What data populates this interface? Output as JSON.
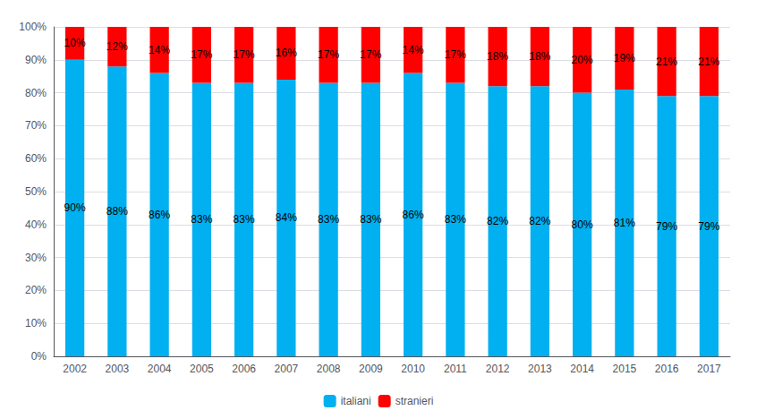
{
  "chart_data": {
    "type": "bar",
    "stacked": true,
    "categories": [
      "2002",
      "2003",
      "2004",
      "2005",
      "2006",
      "2007",
      "2008",
      "2009",
      "2010",
      "2011",
      "2012",
      "2013",
      "2014",
      "2015",
      "2016",
      "2017"
    ],
    "series": [
      {
        "name": "italiani",
        "color": "#00B0F0",
        "values": [
          90,
          88,
          86,
          83,
          83,
          84,
          83,
          83,
          86,
          83,
          82,
          82,
          80,
          81,
          79,
          79
        ],
        "value_labels": [
          "90%",
          "88%",
          "86%",
          "83%",
          "83%",
          "84%",
          "83%",
          "83%",
          "86%",
          "83%",
          "82%",
          "82%",
          "80%",
          "81%",
          "79%",
          "79%"
        ]
      },
      {
        "name": "stranieri",
        "color": "#FF0000",
        "values": [
          10,
          12,
          14,
          17,
          17,
          16,
          17,
          17,
          14,
          17,
          18,
          18,
          20,
          19,
          21,
          21
        ],
        "value_labels": [
          "10%",
          "12%",
          "14%",
          "17%",
          "17%",
          "16%",
          "17%",
          "17%",
          "14%",
          "17%",
          "18%",
          "18%",
          "20%",
          "19%",
          "21%",
          "21%"
        ]
      }
    ],
    "ylim": [
      0,
      100
    ],
    "yticks": [
      {
        "value": 0,
        "label": "0%"
      },
      {
        "value": 10,
        "label": "10%"
      },
      {
        "value": 20,
        "label": "20%"
      },
      {
        "value": 30,
        "label": "30%"
      },
      {
        "value": 40,
        "label": "40%"
      },
      {
        "value": 50,
        "label": "50%"
      },
      {
        "value": 60,
        "label": "60%"
      },
      {
        "value": 70,
        "label": "70%"
      },
      {
        "value": 80,
        "label": "80%"
      },
      {
        "value": 90,
        "label": "90%"
      },
      {
        "value": 100,
        "label": "100%"
      }
    ],
    "grid": true,
    "legend": "bottom",
    "data_labels": true
  }
}
